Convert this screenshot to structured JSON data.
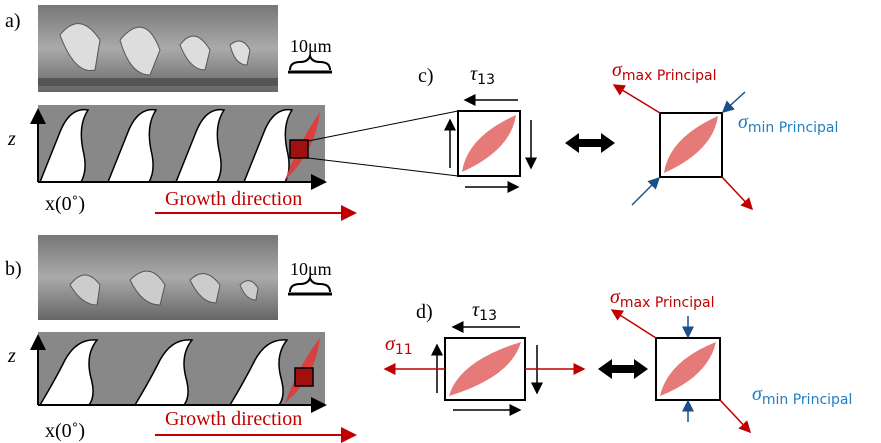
{
  "panels": {
    "a": {
      "label": "a)",
      "scale_bar": "10μm",
      "z_axis": "z",
      "x_axis": "x(0˚)",
      "growth": "Growth direction"
    },
    "b": {
      "label": "b)",
      "scale_bar": "10μm",
      "z_axis": "z",
      "x_axis": "x(0˚)",
      "growth": "Growth direction"
    },
    "c": {
      "label": "c)",
      "shear": {
        "symbol": "τ",
        "sub": "13"
      },
      "sigma_max": {
        "symbol": "σ",
        "sub": "max Principal"
      },
      "sigma_min": {
        "symbol": "σ",
        "sub": "min Principal"
      }
    },
    "d": {
      "label": "d)",
      "shear": {
        "symbol": "τ",
        "sub": "13"
      },
      "normal": {
        "symbol": "σ",
        "sub": "11"
      },
      "sigma_max": {
        "symbol": "σ",
        "sub": "max Principal"
      },
      "sigma_min": {
        "symbol": "σ",
        "sub": "min Principal"
      }
    }
  }
}
